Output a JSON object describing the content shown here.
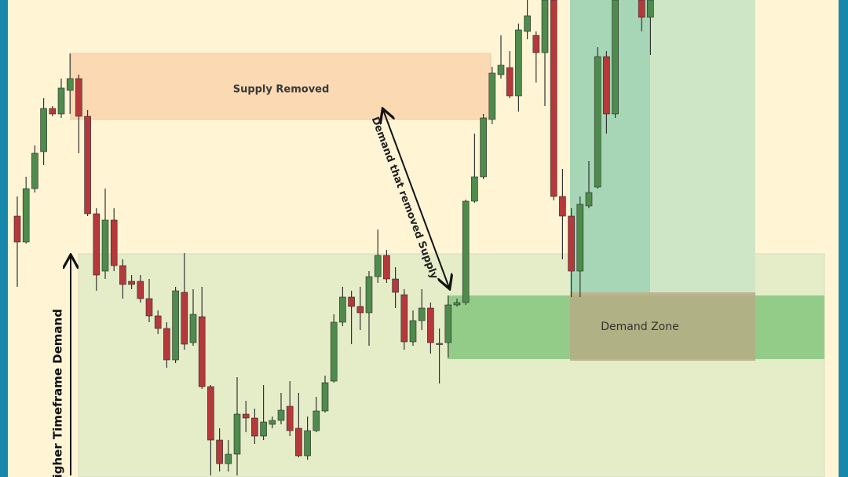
{
  "chart_data": {
    "type": "candlestick",
    "open": [
      332,
      299,
      367,
      414,
      469,
      462,
      492,
      507,
      459,
      335,
      262,
      327,
      269,
      249,
      249,
      227,
      205,
      189,
      149,
      235,
      171,
      204,
      115,
      47,
      17,
      29,
      80,
      75,
      52,
      67,
      72,
      90,
      62,
      27,
      59,
      84,
      122,
      197,
      229,
      217,
      209,
      255,
      282,
      252,
      232,
      172,
      199,
      215,
      170,
      171,
      219,
      222,
      351,
      382,
      455,
      512,
      521,
      485,
      567,
      562,
      540,
      607,
      357,
      332,
      262,
      345,
      369,
      535,
      462,
      null,
      null,
      607,
      585
    ],
    "high": [
      357,
      382,
      422,
      482,
      472,
      507,
      539,
      512,
      467,
      342,
      367,
      342,
      277,
      257,
      257,
      252,
      212,
      197,
      242,
      285,
      239,
      242,
      117,
      62,
      47,
      127,
      97,
      87,
      117,
      77,
      107,
      122,
      107,
      77,
      102,
      129,
      207,
      242,
      237,
      242,
      262,
      315,
      289,
      267,
      239,
      212,
      239,
      222,
      189,
      231,
      227,
      353,
      437,
      462,
      522,
      562,
      542,
      577,
      607,
      567,
      607,
      607,
      392,
      342,
      357,
      402,
      547,
      542,
      607,
      null,
      null,
      607,
      607
    ],
    "low": [
      242,
      297,
      362,
      397,
      459,
      457,
      462,
      412,
      332,
      237,
      252,
      262,
      227,
      239,
      222,
      197,
      182,
      139,
      145,
      162,
      167,
      112,
      2,
      7,
      7,
      2,
      57,
      42,
      47,
      62,
      67,
      52,
      25,
      22,
      57,
      82,
      120,
      192,
      169,
      187,
      167,
      247,
      247,
      215,
      162,
      167,
      187,
      157,
      119,
      152,
      217,
      219,
      349,
      379,
      449,
      507,
      482,
      465,
      557,
      502,
      472,
      352,
      277,
      229,
      229,
      342,
      367,
      437,
      457,
      null,
      null,
      567,
      537
    ],
    "close": [
      299,
      367,
      412,
      469,
      462,
      495,
      507,
      459,
      335,
      257,
      327,
      269,
      245,
      245,
      227,
      205,
      189,
      149,
      237,
      169,
      207,
      115,
      47,
      17,
      29,
      80,
      75,
      52,
      70,
      72,
      85,
      59,
      27,
      59,
      84,
      120,
      197,
      229,
      217,
      209,
      255,
      282,
      252,
      235,
      172,
      199,
      215,
      171,
      169,
      219,
      222,
      351,
      382,
      457,
      514,
      524,
      485,
      569,
      587,
      540,
      607,
      357,
      332,
      262,
      347,
      362,
      535,
      462,
      607,
      null,
      null,
      585,
      607
    ],
    "ylim": [
      0,
      607
    ],
    "up_color": "#4e8b4c",
    "down_color": "#b5393b",
    "annotations": [
      "Supply Removed",
      "Demand that removed Supply",
      "Higher Timeframe Demand",
      "Demand Zone"
    ]
  }
}
